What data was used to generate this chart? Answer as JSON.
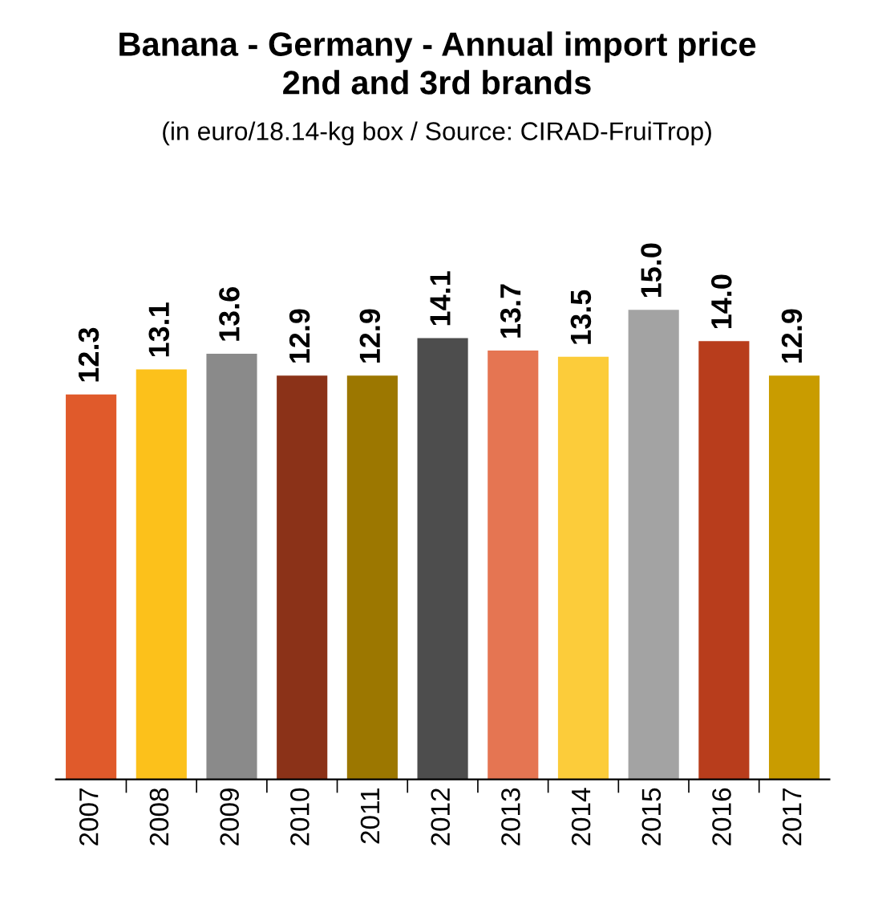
{
  "chart_data": {
    "type": "bar",
    "title": "Banana - Germany - Annual import price\n2nd and 3rd brands",
    "subtitle": "(in euro/18.14-kg box / Source: CIRAD-FruiTrop)",
    "categories": [
      "2007",
      "2008",
      "2009",
      "2010",
      "2011",
      "2012",
      "2013",
      "2014",
      "2015",
      "2016",
      "2017"
    ],
    "values": [
      12.3,
      13.1,
      13.6,
      12.9,
      12.9,
      14.1,
      13.7,
      13.5,
      15.0,
      14.0,
      12.9
    ],
    "colors": [
      "#e05a2b",
      "#fcc11b",
      "#8a8a8a",
      "#8b3218",
      "#9c7700",
      "#4d4d4d",
      "#e57552",
      "#fccc3a",
      "#a3a3a3",
      "#b83d1c",
      "#c99c00"
    ],
    "value_labels": [
      "12.3",
      "13.1",
      "13.6",
      "12.9",
      "12.9",
      "14.1",
      "13.7",
      "13.5",
      "15.0",
      "14.0",
      "12.9"
    ],
    "tick_labels": "x",
    "grid": false,
    "legend": false
  }
}
